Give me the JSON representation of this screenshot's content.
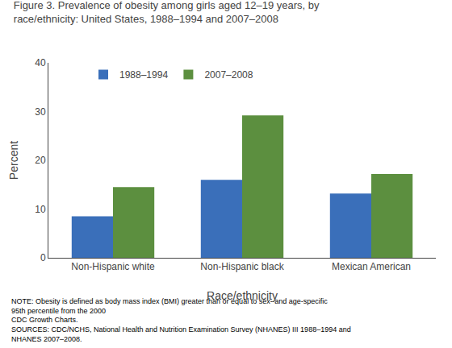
{
  "chart_data": {
    "type": "bar",
    "title": "Figure 3. Prevalence of obesity among girls aged 12–19 years, by\nrace/ethnicity: United States, 1988–1994 and 2007–2008",
    "xlabel": "Race/ethnicity",
    "ylabel": "Percent",
    "categories": [
      "Non-Hispanic white",
      "Non-Hispanic black",
      "Mexican American"
    ],
    "series": [
      {
        "name": "1988–1994",
        "color": "#3a6fba",
        "values": [
          8.5,
          16.0,
          13.2
        ]
      },
      {
        "name": "2007–2008",
        "color": "#5c8f3f",
        "values": [
          14.5,
          29.2,
          17.2
        ]
      }
    ],
    "ylim": [
      0,
      40
    ],
    "yticks": [
      0,
      10,
      20,
      30,
      40
    ],
    "grid": false,
    "legend": "upper left",
    "annotations": [
      "NOTE: Obesity is defined as body mass index (BMI) greater than or equal to sex- and age-specific 95th percentile from the 2000\nCDC Growth Charts.\nSOURCES: CDC/NCHS, National Health and Nutrition Examination Survey (NHANES) III 1988–1994 and NHANES 2007–2008."
    ]
  }
}
